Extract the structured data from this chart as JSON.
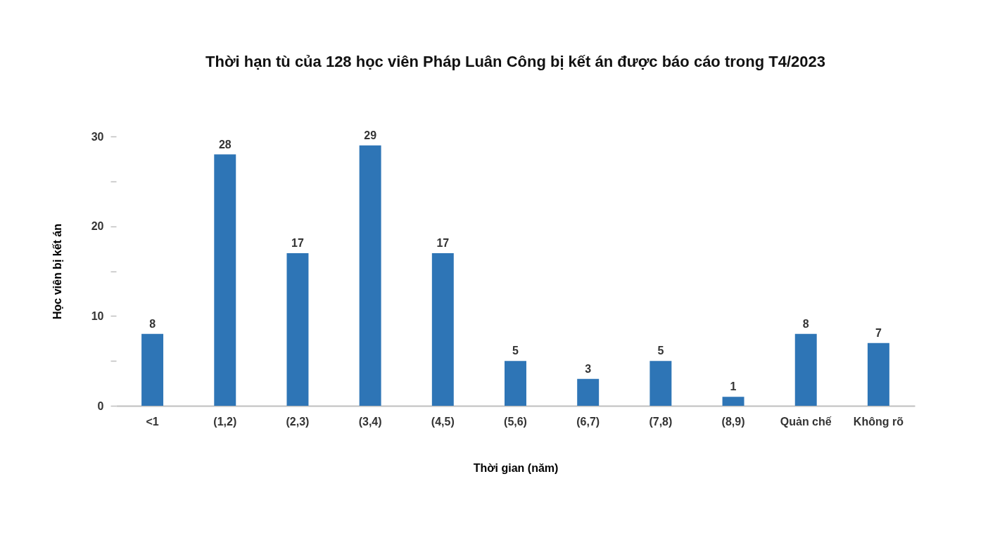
{
  "chart_data": {
    "type": "bar",
    "title": "Thời hạn tù của 128 học viên Pháp Luân Công bị kết án được báo cáo trong T4/2023",
    "xlabel": "Thời gian (năm)",
    "ylabel": "Học viên bị kết án",
    "categories": [
      "<1",
      "(1,2)",
      "(2,3)",
      "(3,4)",
      "(4,5)",
      "(5,6)",
      "(6,7)",
      "(7,8)",
      "(8,9)",
      "Quản chế",
      "Không rõ"
    ],
    "values": [
      8,
      28,
      17,
      29,
      17,
      5,
      3,
      5,
      1,
      8,
      7
    ],
    "color": "#2e75b6",
    "ylim": [
      0,
      30
    ],
    "yticks": [
      0,
      {
        "value": 5,
        "label": null
      },
      10,
      {
        "value": 15,
        "label": null
      },
      20,
      {
        "value": 25,
        "label": null
      },
      30
    ],
    "grid": false,
    "data_labels": true
  }
}
